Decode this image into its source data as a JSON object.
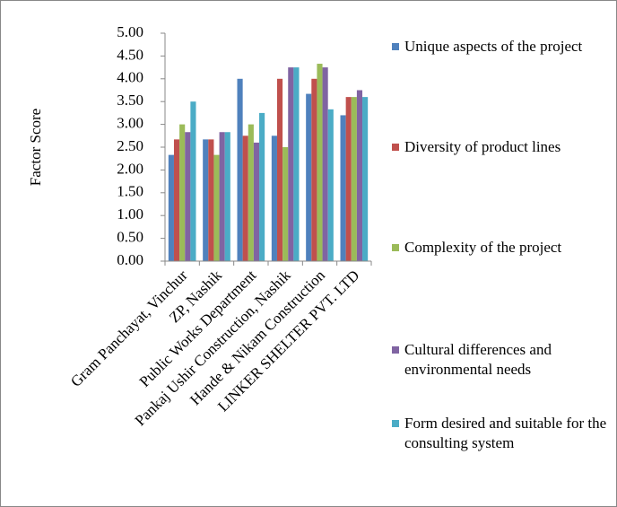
{
  "chart_data": {
    "type": "bar",
    "y_label": "Factor Score",
    "categories": [
      "Gram Panchayat, Vinchur",
      "ZP, Nashik",
      "Public Works Department",
      "Pankaj Ushir Construction, Nashik",
      "Hande & Nikam Construction",
      "LINKER SHELTER PVT. LTD"
    ],
    "series": [
      {
        "name": "Unique aspects of the project",
        "color": "#4f81bd",
        "values": [
          2.33,
          2.67,
          4.0,
          2.75,
          3.67,
          3.2
        ]
      },
      {
        "name": "Diversity of product lines",
        "color": "#c0504d",
        "values": [
          2.67,
          2.67,
          2.75,
          4.0,
          4.0,
          3.6
        ]
      },
      {
        "name": "Complexity of the project",
        "color": "#9bbb59",
        "values": [
          3.0,
          2.33,
          3.0,
          2.5,
          4.33,
          3.6
        ]
      },
      {
        "name": "Cultural differences and environmental needs",
        "color": "#8064a2",
        "values": [
          2.83,
          2.83,
          2.6,
          4.25,
          4.25,
          3.75
        ]
      },
      {
        "name": "Form desired and suitable for the consulting system",
        "color": "#4bacc6",
        "values": [
          3.5,
          2.83,
          3.25,
          4.25,
          3.33,
          3.6
        ]
      }
    ],
    "ylim": [
      0,
      5
    ],
    "yticks": [
      {
        "value": 0,
        "label": "0.00"
      },
      {
        "value": 0.5,
        "label": "0.50"
      },
      {
        "value": 1,
        "label": "1.00"
      },
      {
        "value": 1.5,
        "label": "1.50"
      },
      {
        "value": 2,
        "label": "2.00"
      },
      {
        "value": 2.5,
        "label": "2.50"
      },
      {
        "value": 3,
        "label": "3.00"
      },
      {
        "value": 3.5,
        "label": "3.50"
      },
      {
        "value": 4,
        "label": "4.00"
      },
      {
        "value": 4.5,
        "label": "4.50"
      },
      {
        "value": 5,
        "label": "5.00"
      }
    ],
    "legend": "right"
  }
}
